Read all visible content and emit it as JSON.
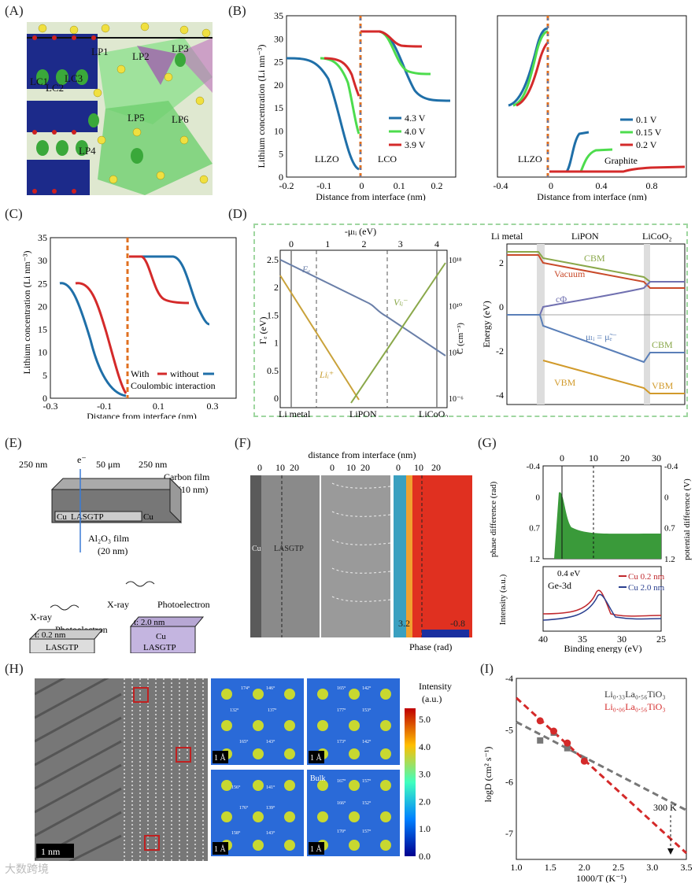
{
  "labels": {
    "A": "(A)",
    "B": "(B)",
    "C": "(C)",
    "D": "(D)",
    "E": "(E)",
    "F": "(F)",
    "G": "(G)",
    "H": "(H)",
    "I": "(I)"
  },
  "A": {
    "sites": [
      "LP1",
      "LP2",
      "LP3",
      "LC1",
      "LC2",
      "LC3",
      "LP5",
      "LP6",
      "LP4"
    ]
  },
  "chart_data": [
    {
      "id": "B-left",
      "type": "line",
      "xlabel": "Distance from interface (nm)",
      "ylabel": "Lithium concentration (Li nm⁻³)",
      "xlim": [
        -0.2,
        0.25
      ],
      "ylim": [
        0,
        35
      ],
      "xticks": [
        "-0.2",
        "-0.1",
        "0",
        "0.1",
        "0.2"
      ],
      "yticks": [
        "0",
        "5",
        "10",
        "15",
        "20",
        "25",
        "30",
        "35"
      ],
      "regions": [
        "LLZO",
        "LCO"
      ],
      "series": [
        {
          "name": "4.3 V",
          "color": "#1f6fa8"
        },
        {
          "name": "4.0 V",
          "color": "#4ddc4d"
        },
        {
          "name": "3.9 V",
          "color": "#d42a2a"
        }
      ]
    },
    {
      "id": "B-right",
      "type": "line",
      "xlabel": "Distance from interface (nm)",
      "xlim": [
        -0.4,
        1.0
      ],
      "ylim": [
        0,
        60
      ],
      "xticks": [
        "-0.4",
        "0",
        "0.4",
        "0.8"
      ],
      "regions": [
        "LLZO",
        "Graphite"
      ],
      "series": [
        {
          "name": "0.1 V",
          "color": "#1f6fa8"
        },
        {
          "name": "0.15 V",
          "color": "#4ddc4d"
        },
        {
          "name": "0.2 V",
          "color": "#d42a2a"
        }
      ]
    },
    {
      "id": "C",
      "type": "line",
      "xlabel": "Distance from interface (nm)",
      "ylabel": "Lithium concentration (Li nm⁻³)",
      "xlim": [
        -0.3,
        0.35
      ],
      "ylim": [
        0,
        35
      ],
      "xticks": [
        "-0.3",
        "-0.1",
        "0.1",
        "0.3"
      ],
      "yticks": [
        "0",
        "5",
        "10",
        "15",
        "20",
        "25",
        "30",
        "35"
      ],
      "legend": {
        "with": "With",
        "without": "without",
        "sub": "Coulombic interaction"
      },
      "series": [
        {
          "name": "With",
          "color": "#d42a2a"
        },
        {
          "name": "without",
          "color": "#1f6fa8"
        }
      ]
    },
    {
      "id": "D-left",
      "type": "line",
      "xlabel_top": "-μₗᵢ (eV)",
      "ylabel": "Γₑ (eV)",
      "ylabel2": "C (cm⁻³)",
      "top_ticks": [
        "0",
        "1",
        "2",
        "3",
        "4"
      ],
      "yticks": [
        "0",
        "0.5",
        "1",
        "1.5",
        "2",
        "2.5"
      ],
      "y2ticks": [
        "10⁻⁶",
        "10²",
        "10¹⁰",
        "10¹⁸"
      ],
      "regions": [
        "Li metal",
        "LiPON",
        "LiCoO₂"
      ],
      "annotations": [
        "Eₑ",
        "Vₗᵢ⁻",
        "Liᵢ⁺"
      ]
    },
    {
      "id": "D-right",
      "type": "line",
      "ylabel": "Energy (eV)",
      "yticks": [
        "-4",
        "-2",
        "0",
        "2"
      ],
      "regions": [
        "Li metal",
        "LiPON",
        "LiCoO₂"
      ],
      "annotations": [
        "CBM",
        "Vacuum",
        "cΦ",
        "μₗᵢ = μ̃ₑ⁻",
        "CBM",
        "VBM",
        "VBM"
      ]
    },
    {
      "id": "G-top",
      "type": "area",
      "ylabel": "phase difference (rad)",
      "ylabel2": "potential difference (V)",
      "xticks": [
        "0",
        "10",
        "20",
        "30"
      ],
      "yticks": [
        "-0.4",
        "0",
        "0.7",
        "1.2"
      ],
      "y2ticks": [
        "-0.4",
        "0",
        "0.7",
        "1.2"
      ]
    },
    {
      "id": "G-bottom",
      "type": "line",
      "xlabel": "Binding energy (eV)",
      "ylabel": "Intensity (a.u.)",
      "xticks": [
        "40",
        "35",
        "30",
        "25"
      ],
      "label": "Ge-3d",
      "annotation": "0.4 eV",
      "series": [
        {
          "name": "Cu 0.2 nm",
          "color": "#c0282d"
        },
        {
          "name": "Cu 2.0 nm",
          "color": "#2a3f8f"
        }
      ]
    },
    {
      "id": "I",
      "type": "scatter",
      "xlabel": "1000/T (K⁻¹)",
      "ylabel": "logD (cm² s⁻¹)",
      "xlim": [
        1.0,
        3.5
      ],
      "ylim": [
        -7.5,
        -4
      ],
      "xticks": [
        "1.0",
        "1.5",
        "2.0",
        "2.5",
        "3.0",
        "3.5"
      ],
      "yticks": [
        "-4",
        "-5",
        "-6",
        "-7"
      ],
      "annotation": "300 K",
      "series": [
        {
          "name": "Li0.33La0.56TiO3",
          "color": "#777777",
          "x": [
            1.35,
            1.55,
            1.75,
            2.0
          ],
          "y": [
            -5.2,
            -5.05,
            -5.35,
            -5.58
          ]
        },
        {
          "name": "Li0.06La0.56TiO3",
          "color": "#d42a2a",
          "x": [
            1.35,
            1.55,
            1.75,
            2.0
          ],
          "y": [
            -4.82,
            -5.02,
            -5.25,
            -5.6
          ]
        }
      ],
      "legend": [
        "Li₀.₃₃La₀.₅₆TiO₃",
        "Li₀.₀₆La₀.₅₆TiO₃"
      ]
    }
  ],
  "E": {
    "dims": [
      "250 nm",
      "e⁻",
      "50 μm",
      "250 nm"
    ],
    "carbon": "Carbon film",
    "carbon_t": "(10 nm)",
    "cu": "Cu",
    "lasgtp": "LASGTP",
    "alox": "Al₂O₃ film",
    "alox_t": "(20 nm)",
    "xray": "X-ray",
    "photo": "Photoelectron",
    "t1": "t: 0.2 nm",
    "t2": "t: 2.0 nm"
  },
  "F": {
    "title": "distance from interface (nm)",
    "ticks": [
      "0",
      "10",
      "20"
    ],
    "cu": "Cu",
    "lasgtp": "LASGTP",
    "cb_min": "3.2",
    "cb_max": "-0.8",
    "cb_label": "Phase (rad)"
  },
  "H": {
    "cb_title": "Intensity",
    "cb_unit": "(a.u.)",
    "cb_ticks": [
      "5.0",
      "4.0",
      "3.0",
      "2.0",
      "1.0",
      "0.0"
    ],
    "scale1": "1 nm",
    "scale2": "1 Å",
    "bulk": "Bulk",
    "angles": [
      "174°",
      "146°",
      "137°",
      "132°",
      "165°",
      "143°",
      "165°",
      "142°",
      "177°",
      "153°",
      "173°",
      "142°",
      "156°",
      "141°",
      "176°",
      "139°",
      "158°",
      "143°",
      "167°",
      "157°",
      "166°",
      "152°",
      "170°",
      "157°"
    ]
  },
  "watermark": "大数跨境"
}
